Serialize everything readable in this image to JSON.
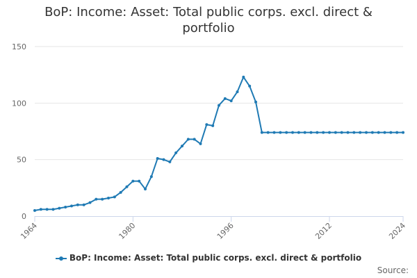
{
  "chart_data": {
    "type": "line",
    "title": "BoP: Income: Asset: Total public corps. excl. direct & portfolio",
    "xlabel": "",
    "ylabel": "",
    "x": [
      1964,
      1965,
      1966,
      1967,
      1968,
      1969,
      1970,
      1971,
      1972,
      1973,
      1974,
      1975,
      1976,
      1977,
      1978,
      1979,
      1980,
      1981,
      1982,
      1983,
      1984,
      1985,
      1986,
      1987,
      1988,
      1989,
      1990,
      1991,
      1992,
      1993,
      1994,
      1995,
      1996,
      1997,
      1998,
      1999,
      2000,
      2001,
      2002,
      2003,
      2004,
      2005,
      2006,
      2007,
      2008,
      2009,
      2010,
      2011,
      2012,
      2013,
      2014,
      2015,
      2016,
      2017,
      2018,
      2019,
      2020,
      2021,
      2022,
      2023,
      2024
    ],
    "series": [
      {
        "name": "BoP: Income: Asset: Total public corps. excl. direct & portfolio",
        "color": "#1f7ab4",
        "values": [
          5,
          6,
          6,
          6,
          7,
          8,
          9,
          10,
          10,
          12,
          15,
          15,
          16,
          17,
          21,
          26,
          31,
          31,
          24,
          35,
          51,
          50,
          48,
          56,
          62,
          68,
          68,
          64,
          81,
          80,
          98,
          104,
          102,
          110,
          123,
          115,
          101,
          74,
          74,
          74,
          74,
          74,
          74,
          74,
          74,
          74,
          74,
          74,
          74,
          74,
          74,
          74,
          74,
          74,
          74,
          74,
          74,
          74,
          74,
          74,
          74
        ]
      }
    ],
    "x_ticks": [
      "1964",
      "1980",
      "1996",
      "2012",
      "2024"
    ],
    "y_ticks": [
      "0",
      "50",
      "100",
      "150"
    ],
    "xlim": [
      1964,
      2024
    ],
    "ylim": [
      0,
      150
    ],
    "grid": "horizontal",
    "legend_position": "bottom"
  },
  "credits": "Source:"
}
